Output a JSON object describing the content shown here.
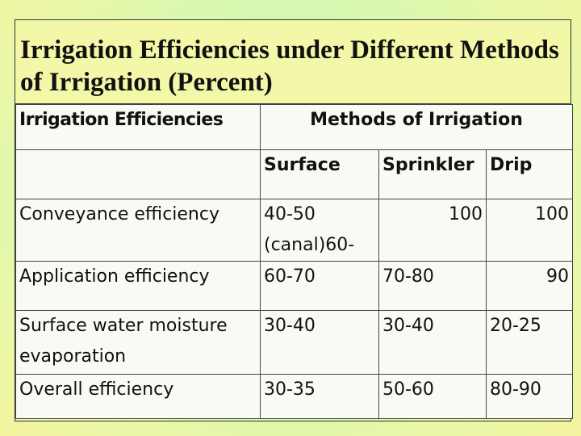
{
  "slide": {
    "title": "Irrigation Efficiencies under Different Methods of Irrigation (Percent)"
  },
  "table": {
    "header": {
      "col1": "Irrigation Efficiencies",
      "group": "Methods of Irrigation"
    },
    "subheaders": [
      "Surface",
      "Sprinkler",
      "Drip"
    ],
    "rows": [
      {
        "label": "Conveyance efficiency",
        "surface": "40-50 (canal)60-",
        "sprinkler": "100",
        "drip": "100"
      },
      {
        "label": "Application efficiency",
        "surface": "60-70",
        "sprinkler": "70-80",
        "drip": "90"
      },
      {
        "label": "Surface water moisture evaporation",
        "surface": "30-40",
        "sprinkler": "30-40",
        "drip": "20-25"
      },
      {
        "label": "Overall efficiency",
        "surface": "30-35",
        "sprinkler": "50-60",
        "drip": "80-90"
      }
    ]
  }
}
